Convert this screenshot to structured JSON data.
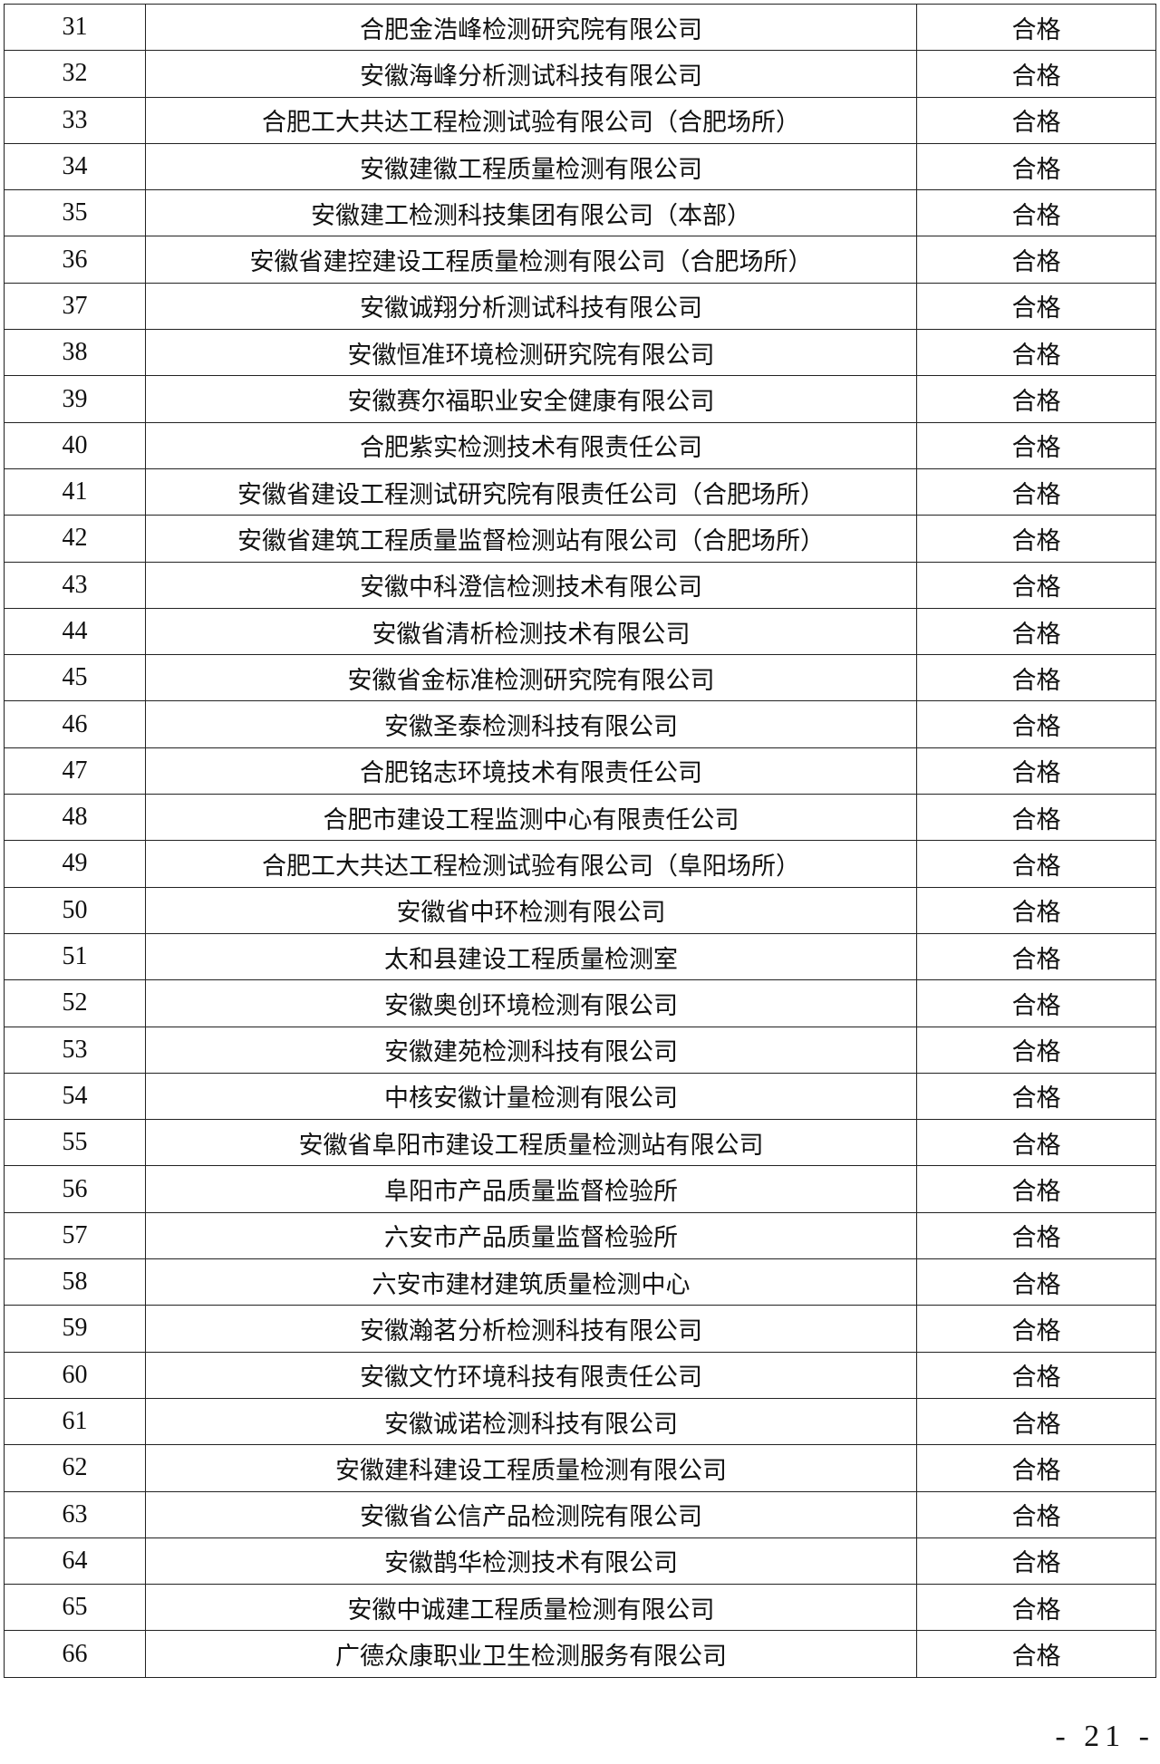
{
  "table": {
    "rows": [
      {
        "no": "31",
        "name": "合肥金浩峰检测研究院有限公司",
        "result": "合格"
      },
      {
        "no": "32",
        "name": "安徽海峰分析测试科技有限公司",
        "result": "合格"
      },
      {
        "no": "33",
        "name": "合肥工大共达工程检测试验有限公司（合肥场所）",
        "result": "合格"
      },
      {
        "no": "34",
        "name": "安徽建徽工程质量检测有限公司",
        "result": "合格"
      },
      {
        "no": "35",
        "name": "安徽建工检测科技集团有限公司（本部）",
        "result": "合格"
      },
      {
        "no": "36",
        "name": "安徽省建控建设工程质量检测有限公司（合肥场所）",
        "result": "合格"
      },
      {
        "no": "37",
        "name": "安徽诚翔分析测试科技有限公司",
        "result": "合格"
      },
      {
        "no": "38",
        "name": "安徽恒准环境检测研究院有限公司",
        "result": "合格"
      },
      {
        "no": "39",
        "name": "安徽赛尔福职业安全健康有限公司",
        "result": "合格"
      },
      {
        "no": "40",
        "name": "合肥紫实检测技术有限责任公司",
        "result": "合格"
      },
      {
        "no": "41",
        "name": "安徽省建设工程测试研究院有限责任公司（合肥场所）",
        "result": "合格"
      },
      {
        "no": "42",
        "name": "安徽省建筑工程质量监督检测站有限公司（合肥场所）",
        "result": "合格"
      },
      {
        "no": "43",
        "name": "安徽中科澄信检测技术有限公司",
        "result": "合格"
      },
      {
        "no": "44",
        "name": "安徽省清析检测技术有限公司",
        "result": "合格"
      },
      {
        "no": "45",
        "name": "安徽省金标准检测研究院有限公司",
        "result": "合格"
      },
      {
        "no": "46",
        "name": "安徽圣泰检测科技有限公司",
        "result": "合格"
      },
      {
        "no": "47",
        "name": "合肥铭志环境技术有限责任公司",
        "result": "合格"
      },
      {
        "no": "48",
        "name": "合肥市建设工程监测中心有限责任公司",
        "result": "合格"
      },
      {
        "no": "49",
        "name": "合肥工大共达工程检测试验有限公司（阜阳场所）",
        "result": "合格"
      },
      {
        "no": "50",
        "name": "安徽省中环检测有限公司",
        "result": "合格"
      },
      {
        "no": "51",
        "name": "太和县建设工程质量检测室",
        "result": "合格"
      },
      {
        "no": "52",
        "name": "安徽奥创环境检测有限公司",
        "result": "合格"
      },
      {
        "no": "53",
        "name": "安徽建苑检测科技有限公司",
        "result": "合格"
      },
      {
        "no": "54",
        "name": "中核安徽计量检测有限公司",
        "result": "合格"
      },
      {
        "no": "55",
        "name": "安徽省阜阳市建设工程质量检测站有限公司",
        "result": "合格"
      },
      {
        "no": "56",
        "name": "阜阳市产品质量监督检验所",
        "result": "合格"
      },
      {
        "no": "57",
        "name": "六安市产品质量监督检验所",
        "result": "合格"
      },
      {
        "no": "58",
        "name": "六安市建材建筑质量检测中心",
        "result": "合格"
      },
      {
        "no": "59",
        "name": "安徽瀚茗分析检测科技有限公司",
        "result": "合格"
      },
      {
        "no": "60",
        "name": "安徽文竹环境科技有限责任公司",
        "result": "合格"
      },
      {
        "no": "61",
        "name": "安徽诚诺检测科技有限公司",
        "result": "合格"
      },
      {
        "no": "62",
        "name": "安徽建科建设工程质量检测有限公司",
        "result": "合格"
      },
      {
        "no": "63",
        "name": "安徽省公信产品检测院有限公司",
        "result": "合格"
      },
      {
        "no": "64",
        "name": "安徽鹊华检测技术有限公司",
        "result": "合格"
      },
      {
        "no": "65",
        "name": "安徽中诚建工程质量检测有限公司",
        "result": "合格"
      },
      {
        "no": "66",
        "name": "广德众康职业卫生检测服务有限公司",
        "result": "合格"
      }
    ]
  },
  "footer": {
    "page_number": "- 21 -"
  }
}
